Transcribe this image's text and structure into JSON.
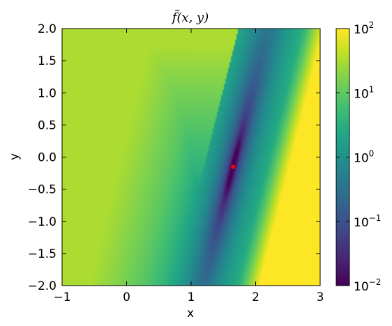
{
  "chart_data": {
    "type": "heatmap",
    "title": "f̃(x, y)",
    "xlabel": "x",
    "ylabel": "y",
    "xlim": [
      -1,
      3
    ],
    "ylim": [
      -2,
      2
    ],
    "x_ticks": [
      -1,
      0,
      1,
      2,
      3
    ],
    "x_tick_labels": [
      "−1",
      "0",
      "1",
      "2",
      "3"
    ],
    "y_ticks": [
      -2.0,
      -1.5,
      -1.0,
      -0.5,
      0.0,
      0.5,
      1.0,
      1.5,
      2.0
    ],
    "y_tick_labels": [
      "−2.0",
      "−1.5",
      "−1.0",
      "−0.5",
      "0.0",
      "0.5",
      "1.0",
      "1.5",
      "2.0"
    ],
    "colorscale": "viridis",
    "color_scale_type": "log",
    "color_range": [
      0.01,
      100
    ],
    "colorbar_ticks": [
      0.01,
      0.1,
      1,
      10,
      100
    ],
    "colorbar_tick_labels": [
      {
        "base": "10",
        "exp": "−2"
      },
      {
        "base": "10",
        "exp": "−1"
      },
      {
        "base": "10",
        "exp": "0"
      },
      {
        "base": "10",
        "exp": "1"
      },
      {
        "base": "10",
        "exp": "2"
      }
    ],
    "grid": false,
    "marker": {
      "x": 1.65,
      "y": -0.15,
      "color": "#ff0000"
    }
  }
}
